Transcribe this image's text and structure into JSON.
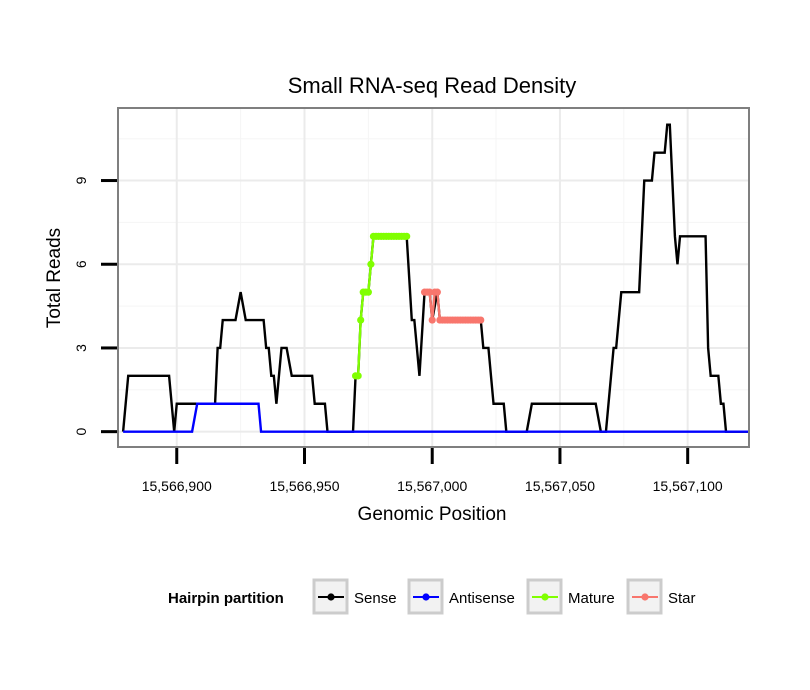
{
  "chart_data": {
    "type": "line",
    "title": "Small RNA-seq Read Density",
    "xlabel": "Genomic Position",
    "ylabel": "Total Reads",
    "xlim": [
      15566877,
      15567124
    ],
    "ylim": [
      -0.55,
      11.6
    ],
    "x_ticks": [
      15566900,
      15566950,
      15567000,
      15567050,
      15567100
    ],
    "x_tick_labels": [
      "15,566,900",
      "15,566,950",
      "15,567,000",
      "15,567,050",
      "15,567,100"
    ],
    "y_ticks": [
      0,
      3,
      6,
      9
    ],
    "y_tick_labels": [
      "0",
      "3",
      "6",
      "9"
    ],
    "grid": true,
    "legend": {
      "title": "Hairpin partition",
      "position": "bottom",
      "entries": [
        "Sense",
        "Antisense",
        "Mature",
        "Star"
      ]
    },
    "series": [
      {
        "name": "Sense",
        "color": "#000000",
        "style": "line",
        "points": [
          [
            15566879,
            0
          ],
          [
            15566881,
            2
          ],
          [
            15566897,
            2
          ],
          [
            15566899,
            0
          ],
          [
            15566900,
            1
          ],
          [
            15566906,
            1
          ],
          [
            15566908,
            1
          ],
          [
            15566913,
            1
          ],
          [
            15566914,
            1
          ],
          [
            15566915,
            1
          ],
          [
            15566916,
            3
          ],
          [
            15566917,
            3
          ],
          [
            15566918,
            4
          ],
          [
            15566923,
            4
          ],
          [
            15566925,
            5
          ],
          [
            15566927,
            4
          ],
          [
            15566934,
            4
          ],
          [
            15566935,
            3
          ],
          [
            15566936,
            3
          ],
          [
            15566937,
            2
          ],
          [
            15566938,
            2
          ],
          [
            15566939,
            1
          ],
          [
            15566941,
            3
          ],
          [
            15566943,
            3
          ],
          [
            15566945,
            2
          ],
          [
            15566953,
            2
          ],
          [
            15566954,
            1
          ],
          [
            15566958,
            1
          ],
          [
            15566959,
            0
          ],
          [
            15566969,
            0
          ],
          [
            15566970,
            2
          ],
          [
            15566971,
            2
          ],
          [
            15566972,
            4
          ],
          [
            15566973,
            5
          ],
          [
            15566975,
            5
          ],
          [
            15566976,
            6
          ],
          [
            15566977,
            7
          ],
          [
            15566990,
            7
          ],
          [
            15566992,
            4
          ],
          [
            15566993,
            4
          ],
          [
            15566995,
            2
          ],
          [
            15566997,
            5
          ],
          [
            15566999,
            5
          ],
          [
            15567000,
            4
          ],
          [
            15567002,
            5
          ],
          [
            15567003,
            4
          ],
          [
            15567019,
            4
          ],
          [
            15567020,
            3
          ],
          [
            15567022,
            3
          ],
          [
            15567023,
            2
          ],
          [
            15567024,
            1
          ],
          [
            15567028,
            1
          ],
          [
            15567029,
            0
          ],
          [
            15567037,
            0
          ],
          [
            15567039,
            1
          ],
          [
            15567064,
            1
          ],
          [
            15567066,
            0
          ],
          [
            15567068,
            0
          ],
          [
            15567071,
            3
          ],
          [
            15567072,
            3
          ],
          [
            15567073,
            4
          ],
          [
            15567074,
            5
          ],
          [
            15567081,
            5
          ],
          [
            15567083,
            9
          ],
          [
            15567086,
            9
          ],
          [
            15567087,
            10
          ],
          [
            15567091,
            10
          ],
          [
            15567092,
            11
          ],
          [
            15567093,
            11
          ],
          [
            15567095,
            7
          ],
          [
            15567096,
            6
          ],
          [
            15567097,
            7
          ],
          [
            15567107,
            7
          ],
          [
            15567108,
            3
          ],
          [
            15567109,
            2
          ],
          [
            15567112,
            2
          ],
          [
            15567113,
            1
          ],
          [
            15567114,
            1
          ],
          [
            15567115,
            0
          ],
          [
            15567124,
            0
          ]
        ]
      },
      {
        "name": "Antisense",
        "color": "#0000ff",
        "style": "line",
        "points": [
          [
            15566879,
            0
          ],
          [
            15566906,
            0
          ],
          [
            15566908,
            1
          ],
          [
            15566932,
            1
          ],
          [
            15566933,
            0
          ],
          [
            15567124,
            0
          ]
        ]
      },
      {
        "name": "Mature",
        "color": "#80ff00",
        "style": "line-points",
        "points": [
          [
            15566970,
            2
          ],
          [
            15566971,
            2
          ],
          [
            15566972,
            4
          ],
          [
            15566973,
            5
          ],
          [
            15566974,
            5
          ],
          [
            15566975,
            5
          ],
          [
            15566976,
            6
          ],
          [
            15566977,
            7
          ],
          [
            15566978,
            7
          ],
          [
            15566979,
            7
          ],
          [
            15566980,
            7
          ],
          [
            15566981,
            7
          ],
          [
            15566982,
            7
          ],
          [
            15566983,
            7
          ],
          [
            15566984,
            7
          ],
          [
            15566985,
            7
          ],
          [
            15566986,
            7
          ],
          [
            15566987,
            7
          ],
          [
            15566988,
            7
          ],
          [
            15566989,
            7
          ],
          [
            15566990,
            7
          ]
        ]
      },
      {
        "name": "Star",
        "color": "#f8766d",
        "style": "line-points",
        "points": [
          [
            15566997,
            5
          ],
          [
            15566998,
            5
          ],
          [
            15566999,
            5
          ],
          [
            15567000,
            4
          ],
          [
            15567001,
            5
          ],
          [
            15567002,
            5
          ],
          [
            15567003,
            4
          ],
          [
            15567004,
            4
          ],
          [
            15567005,
            4
          ],
          [
            15567006,
            4
          ],
          [
            15567007,
            4
          ],
          [
            15567008,
            4
          ],
          [
            15567009,
            4
          ],
          [
            15567010,
            4
          ],
          [
            15567011,
            4
          ],
          [
            15567012,
            4
          ],
          [
            15567013,
            4
          ],
          [
            15567014,
            4
          ],
          [
            15567015,
            4
          ],
          [
            15567016,
            4
          ],
          [
            15567017,
            4
          ],
          [
            15567018,
            4
          ],
          [
            15567019,
            4
          ]
        ]
      }
    ]
  }
}
